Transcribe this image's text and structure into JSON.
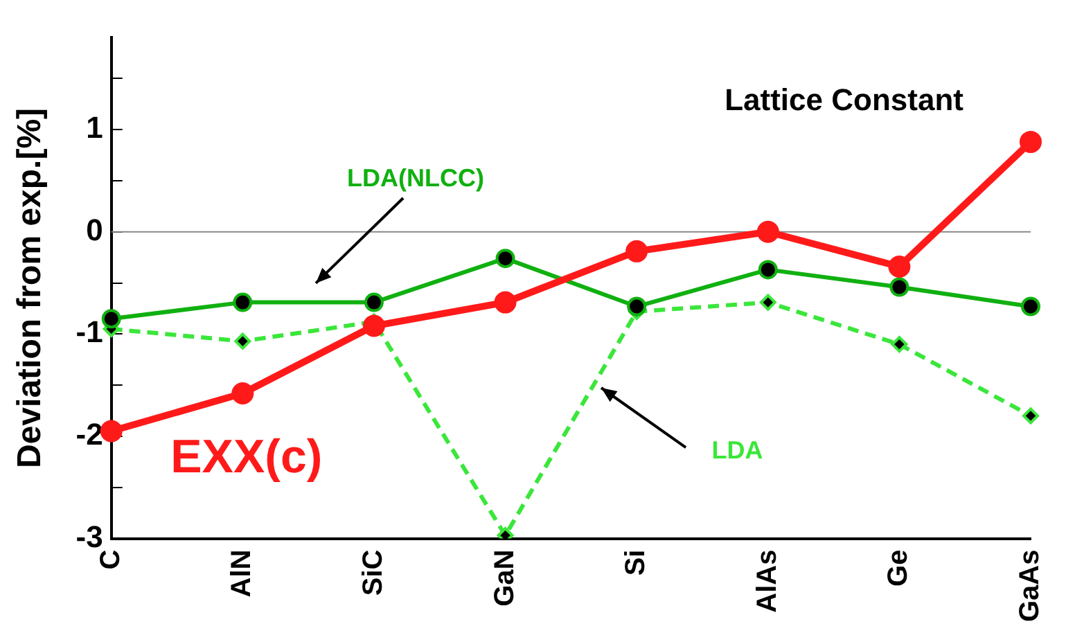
{
  "chart_data": {
    "type": "line",
    "title": "Lattice Constant",
    "ylabel": "Deviation from exp.[%]",
    "categories": [
      "C",
      "AlN",
      "SiC",
      "GaN",
      "Si",
      "AlAs",
      "Ge",
      "GaAs"
    ],
    "series": [
      {
        "name": "EXX(c)",
        "color": "#ff1a1a",
        "marker": "circle",
        "line_style": "solid",
        "values": [
          -1.95,
          -1.58,
          -0.92,
          -0.69,
          -0.19,
          0.0,
          -0.34,
          0.88
        ]
      },
      {
        "name": "LDA(NLCC)",
        "color": "#10b010",
        "marker": "circle",
        "line_style": "solid",
        "values": [
          -0.85,
          -0.69,
          -0.69,
          -0.26,
          -0.73,
          -0.37,
          -0.54,
          -0.73
        ]
      },
      {
        "name": "LDA",
        "color": "#3ae63a",
        "marker": "diamond",
        "line_style": "dashed",
        "values": [
          -0.95,
          -1.07,
          -0.88,
          -2.97,
          -0.78,
          -0.69,
          -1.1,
          -1.8
        ]
      }
    ],
    "ylim": [
      -3,
      1.9
    ],
    "yticks": [
      -3,
      {
        "value": -2.5,
        "label": null
      },
      -2,
      {
        "value": -1.5,
        "label": null
      },
      -1,
      {
        "value": -0.5,
        "label": null
      },
      0,
      {
        "value": 0.5,
        "label": null
      },
      1,
      {
        "value": 1.5,
        "label": null
      }
    ],
    "ref_lines": [
      {
        "axis": "y",
        "value": 0,
        "color": "#888888"
      }
    ],
    "grid": false,
    "legend": false
  }
}
